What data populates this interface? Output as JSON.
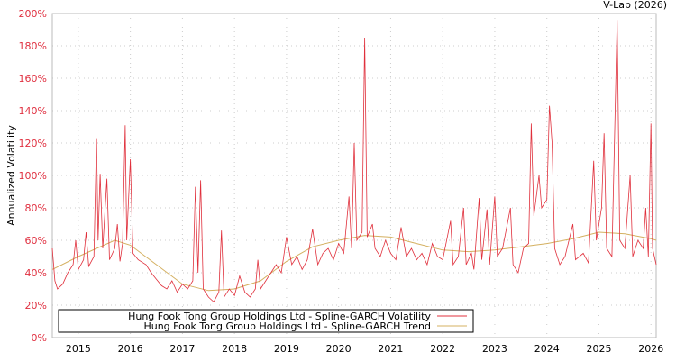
{
  "chart_data": {
    "type": "line",
    "credit": "V-Lab (2026)",
    "ylabel": "Annualized Volatility",
    "ylim": [
      0,
      200
    ],
    "xlim": [
      2014.5,
      2026.1
    ],
    "yticks": [
      "0%",
      "20%",
      "40%",
      "60%",
      "80%",
      "100%",
      "120%",
      "140%",
      "160%",
      "180%",
      "200%"
    ],
    "xticks": [
      "2015",
      "2016",
      "2017",
      "2018",
      "2019",
      "2020",
      "2021",
      "2022",
      "2023",
      "2024",
      "2025",
      "2026"
    ],
    "legend": {
      "position": "bottom-left",
      "entries": [
        "Hung Fook Tong Group Holdings Ltd - Spline-GARCH Volatility",
        "Hung Fook Tong Group Holdings Ltd - Spline-GARCH Trend"
      ]
    },
    "colors": {
      "volatility": "#e0303c",
      "trend": "#d4b060",
      "axis": "#e03040"
    },
    "series": [
      {
        "name": "Volatility",
        "points": [
          [
            2014.5,
            55
          ],
          [
            2014.55,
            35
          ],
          [
            2014.6,
            30
          ],
          [
            2014.7,
            33
          ],
          [
            2014.8,
            40
          ],
          [
            2014.9,
            45
          ],
          [
            2014.95,
            60
          ],
          [
            2015.0,
            42
          ],
          [
            2015.1,
            48
          ],
          [
            2015.15,
            65
          ],
          [
            2015.2,
            44
          ],
          [
            2015.3,
            50
          ],
          [
            2015.35,
            123
          ],
          [
            2015.38,
            60
          ],
          [
            2015.42,
            101
          ],
          [
            2015.47,
            55
          ],
          [
            2015.55,
            98
          ],
          [
            2015.6,
            48
          ],
          [
            2015.7,
            55
          ],
          [
            2015.75,
            70
          ],
          [
            2015.8,
            47
          ],
          [
            2015.85,
            58
          ],
          [
            2015.9,
            131
          ],
          [
            2015.93,
            60
          ],
          [
            2016.0,
            110
          ],
          [
            2016.05,
            52
          ],
          [
            2016.15,
            48
          ],
          [
            2016.3,
            45
          ],
          [
            2016.4,
            40
          ],
          [
            2016.5,
            36
          ],
          [
            2016.6,
            32
          ],
          [
            2016.7,
            30
          ],
          [
            2016.8,
            35
          ],
          [
            2016.9,
            28
          ],
          [
            2017.0,
            33
          ],
          [
            2017.1,
            30
          ],
          [
            2017.2,
            35
          ],
          [
            2017.25,
            93
          ],
          [
            2017.3,
            40
          ],
          [
            2017.35,
            97
          ],
          [
            2017.4,
            30
          ],
          [
            2017.5,
            25
          ],
          [
            2017.6,
            22
          ],
          [
            2017.7,
            28
          ],
          [
            2017.75,
            66
          ],
          [
            2017.8,
            25
          ],
          [
            2017.9,
            30
          ],
          [
            2018.0,
            26
          ],
          [
            2018.1,
            38
          ],
          [
            2018.2,
            28
          ],
          [
            2018.3,
            25
          ],
          [
            2018.4,
            30
          ],
          [
            2018.45,
            48
          ],
          [
            2018.5,
            30
          ],
          [
            2018.6,
            35
          ],
          [
            2018.7,
            40
          ],
          [
            2018.8,
            45
          ],
          [
            2018.9,
            40
          ],
          [
            2019.0,
            62
          ],
          [
            2019.1,
            45
          ],
          [
            2019.2,
            50
          ],
          [
            2019.3,
            42
          ],
          [
            2019.4,
            48
          ],
          [
            2019.5,
            67
          ],
          [
            2019.6,
            45
          ],
          [
            2019.7,
            52
          ],
          [
            2019.8,
            55
          ],
          [
            2019.9,
            48
          ],
          [
            2020.0,
            58
          ],
          [
            2020.1,
            52
          ],
          [
            2020.2,
            87
          ],
          [
            2020.25,
            55
          ],
          [
            2020.3,
            120
          ],
          [
            2020.35,
            60
          ],
          [
            2020.45,
            65
          ],
          [
            2020.5,
            185
          ],
          [
            2020.55,
            62
          ],
          [
            2020.65,
            70
          ],
          [
            2020.7,
            55
          ],
          [
            2020.8,
            50
          ],
          [
            2020.9,
            60
          ],
          [
            2021.0,
            52
          ],
          [
            2021.1,
            48
          ],
          [
            2021.2,
            68
          ],
          [
            2021.3,
            50
          ],
          [
            2021.4,
            55
          ],
          [
            2021.5,
            48
          ],
          [
            2021.6,
            52
          ],
          [
            2021.7,
            45
          ],
          [
            2021.8,
            58
          ],
          [
            2021.9,
            50
          ],
          [
            2022.0,
            48
          ],
          [
            2022.15,
            72
          ],
          [
            2022.2,
            45
          ],
          [
            2022.3,
            50
          ],
          [
            2022.4,
            80
          ],
          [
            2022.45,
            45
          ],
          [
            2022.55,
            52
          ],
          [
            2022.6,
            42
          ],
          [
            2022.7,
            86
          ],
          [
            2022.75,
            48
          ],
          [
            2022.85,
            79
          ],
          [
            2022.9,
            45
          ],
          [
            2023.0,
            87
          ],
          [
            2023.05,
            50
          ],
          [
            2023.15,
            55
          ],
          [
            2023.3,
            80
          ],
          [
            2023.35,
            45
          ],
          [
            2023.45,
            40
          ],
          [
            2023.55,
            55
          ],
          [
            2023.65,
            58
          ],
          [
            2023.7,
            132
          ],
          [
            2023.75,
            75
          ],
          [
            2023.85,
            100
          ],
          [
            2023.9,
            80
          ],
          [
            2024.0,
            85
          ],
          [
            2024.05,
            143
          ],
          [
            2024.1,
            120
          ],
          [
            2024.15,
            55
          ],
          [
            2024.25,
            45
          ],
          [
            2024.35,
            50
          ],
          [
            2024.5,
            70
          ],
          [
            2024.55,
            48
          ],
          [
            2024.7,
            52
          ],
          [
            2024.8,
            46
          ],
          [
            2024.9,
            109
          ],
          [
            2024.95,
            60
          ],
          [
            2025.05,
            80
          ],
          [
            2025.1,
            126
          ],
          [
            2025.15,
            55
          ],
          [
            2025.25,
            50
          ],
          [
            2025.35,
            196
          ],
          [
            2025.4,
            60
          ],
          [
            2025.5,
            55
          ],
          [
            2025.6,
            100
          ],
          [
            2025.65,
            50
          ],
          [
            2025.75,
            60
          ],
          [
            2025.85,
            55
          ],
          [
            2025.9,
            80
          ],
          [
            2025.95,
            50
          ],
          [
            2026.0,
            132
          ],
          [
            2026.03,
            55
          ],
          [
            2026.1,
            45
          ]
        ]
      },
      {
        "name": "Trend",
        "points": [
          [
            2014.5,
            42
          ],
          [
            2015.0,
            50
          ],
          [
            2015.7,
            60
          ],
          [
            2016.0,
            57
          ],
          [
            2016.5,
            45
          ],
          [
            2017.0,
            33
          ],
          [
            2017.5,
            29
          ],
          [
            2018.0,
            30
          ],
          [
            2018.5,
            35
          ],
          [
            2019.0,
            47
          ],
          [
            2019.5,
            56
          ],
          [
            2020.0,
            60
          ],
          [
            2020.5,
            63
          ],
          [
            2021.0,
            62
          ],
          [
            2021.5,
            58
          ],
          [
            2022.0,
            54
          ],
          [
            2022.5,
            53
          ],
          [
            2023.0,
            54
          ],
          [
            2023.5,
            56
          ],
          [
            2024.0,
            58
          ],
          [
            2024.5,
            61
          ],
          [
            2025.0,
            65
          ],
          [
            2025.5,
            64
          ],
          [
            2026.0,
            61
          ],
          [
            2026.1,
            60
          ]
        ]
      }
    ]
  }
}
